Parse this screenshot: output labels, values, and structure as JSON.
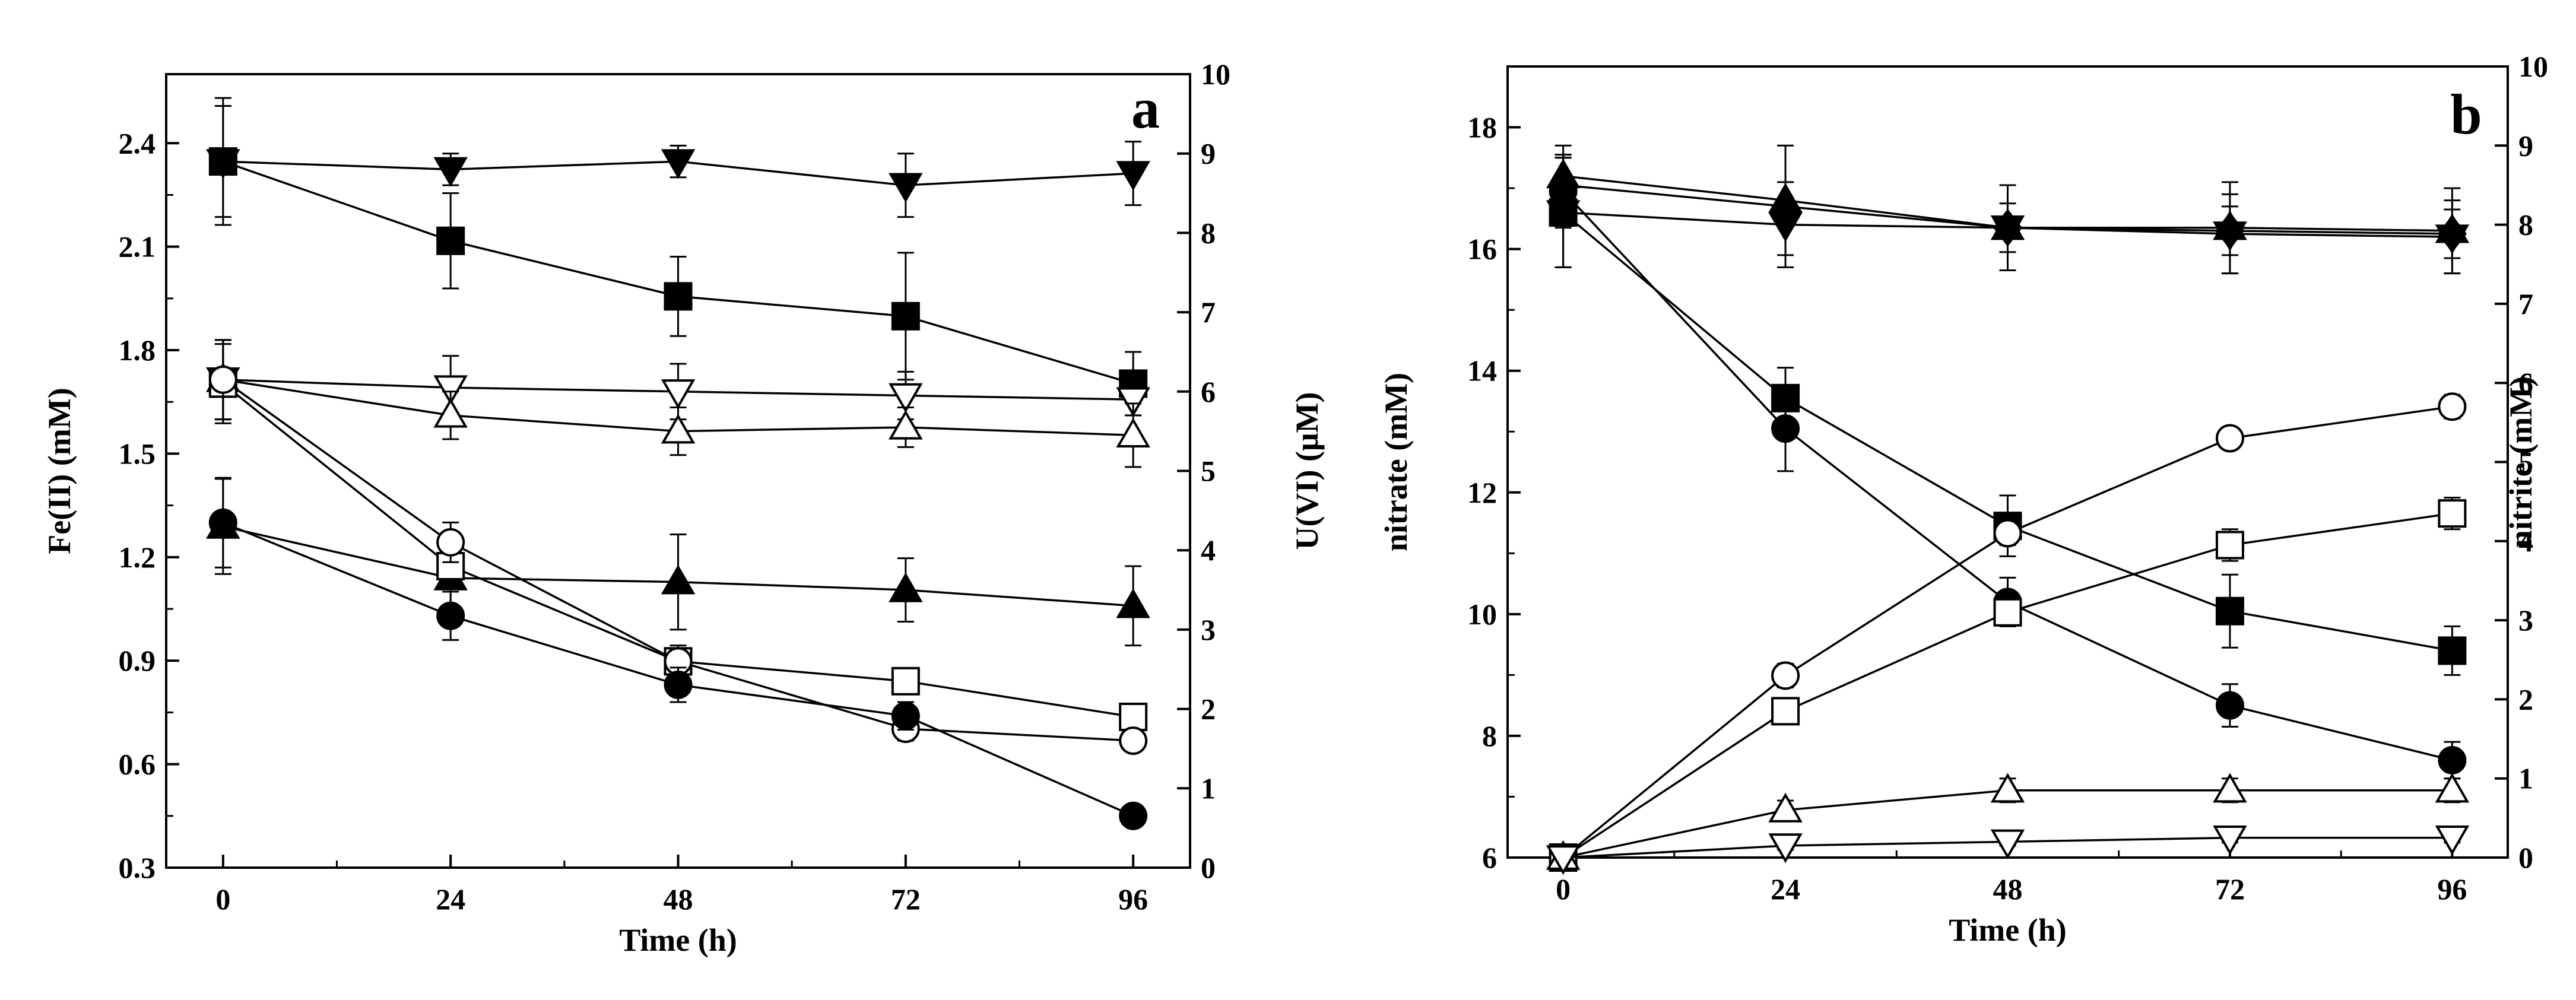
{
  "chart_data": [
    {
      "type": "line",
      "panel_label": "a",
      "xlabel": "Time (h)",
      "ylabel": "Fe(II) (mM)",
      "y2label": "U(VI) (μM)",
      "x": [
        0,
        24,
        48,
        72,
        96
      ],
      "x_ticks": [
        "0",
        "24",
        "48",
        "72",
        "96"
      ],
      "xlim": [
        -6,
        102
      ],
      "ylim": [
        0.3,
        2.6
      ],
      "y_ticks": [
        "0.3",
        "0.6",
        "0.9",
        "1.2",
        "1.5",
        "1.8",
        "2.1",
        "2.4"
      ],
      "y2lim": [
        0,
        10
      ],
      "y2_ticks": [
        "0",
        "1",
        "2",
        "3",
        "4",
        "5",
        "6",
        "7",
        "8",
        "9",
        "10"
      ],
      "series": [
        {
          "name": "filled-down-triangle",
          "marker": "tri-down",
          "filled": true,
          "axis": "right",
          "values": [
            8.9,
            8.8,
            8.9,
            8.6,
            8.75
          ],
          "errors": [
            0.7,
            0.2,
            0.2,
            0.4,
            0.4
          ]
        },
        {
          "name": "filled-square",
          "marker": "square",
          "filled": true,
          "axis": "right",
          "values": [
            8.9,
            7.9,
            7.2,
            6.95,
            6.1
          ],
          "errors": [
            0.8,
            0.6,
            0.5,
            0.8,
            0.4
          ]
        },
        {
          "name": "open-down-triangle",
          "marker": "tri-down",
          "filled": false,
          "axis": "right",
          "values": [
            6.15,
            6.05,
            6.0,
            5.95,
            5.9
          ],
          "errors": [
            0.5,
            0.4,
            0.35,
            0.3,
            0.2
          ]
        },
        {
          "name": "open-up-triangle",
          "marker": "tri-up",
          "filled": false,
          "axis": "right",
          "values": [
            6.15,
            5.7,
            5.5,
            5.55,
            5.45
          ],
          "errors": [
            0.5,
            0.3,
            0.3,
            0.25,
            0.4
          ]
        },
        {
          "name": "filled-up-triangle",
          "marker": "tri-up",
          "filled": true,
          "axis": "right",
          "values": [
            4.3,
            3.65,
            3.6,
            3.5,
            3.3
          ],
          "errors": [
            0.6,
            0.4,
            0.6,
            0.4,
            0.5
          ]
        },
        {
          "name": "open-square",
          "marker": "square",
          "filled": false,
          "axis": "right",
          "values": [
            6.1,
            3.8,
            2.6,
            2.35,
            1.9
          ],
          "errors": [
            0.5,
            0.25,
            0.2,
            0.15,
            0.15
          ]
        },
        {
          "name": "open-circle",
          "marker": "circle",
          "filled": false,
          "axis": "right",
          "values": [
            6.15,
            4.1,
            2.6,
            1.75,
            1.6
          ],
          "errors": [
            0.5,
            0.25,
            0.15,
            0.15,
            0.1
          ]
        },
        {
          "name": "filled-circle",
          "marker": "circle",
          "filled": true,
          "axis": "left",
          "values": [
            1.3,
            1.03,
            0.83,
            0.74,
            0.45
          ],
          "errors": [
            0.13,
            0.07,
            0.05,
            0.04,
            0.02
          ]
        }
      ]
    },
    {
      "type": "line",
      "panel_label": "b",
      "xlabel": "Time (h)",
      "ylabel": "nitrate (mM)",
      "y2label": "nitrite (mM)",
      "x": [
        0,
        24,
        48,
        72,
        96
      ],
      "x_ticks": [
        "0",
        "24",
        "48",
        "72",
        "96"
      ],
      "xlim": [
        -6,
        102
      ],
      "ylim": [
        6,
        19
      ],
      "y_ticks": [
        "6",
        "8",
        "10",
        "12",
        "14",
        "16",
        "18"
      ],
      "y2lim": [
        0,
        10
      ],
      "y2_ticks": [
        "0",
        "1",
        "2",
        "3",
        "4",
        "5",
        "6",
        "7",
        "8",
        "9",
        "10"
      ],
      "series": [
        {
          "name": "filled-up-triangle",
          "marker": "tri-up",
          "filled": true,
          "axis": "left",
          "values": [
            17.2,
            16.8,
            16.35,
            16.35,
            16.3
          ],
          "errors": [
            0.5,
            0.9,
            0.7,
            0.75,
            0.7
          ]
        },
        {
          "name": "filled-down-triangle",
          "marker": "tri-down",
          "filled": true,
          "axis": "left",
          "values": [
            16.6,
            16.4,
            16.35,
            16.25,
            16.2
          ],
          "errors": [
            0.9,
            0.7,
            0.7,
            0.65,
            0.6
          ]
        },
        {
          "name": "filled-diamond",
          "marker": "diamond",
          "filled": true,
          "axis": "left",
          "values": [
            17.05,
            null,
            16.35,
            16.3,
            16.25
          ],
          "errors": [
            0.5,
            null,
            0.4,
            0.4,
            0.4
          ]
        },
        {
          "name": "filled-square",
          "marker": "square",
          "filled": true,
          "axis": "left",
          "values": [
            16.6,
            13.55,
            11.45,
            10.05,
            9.4
          ],
          "errors": [
            0.9,
            0.5,
            0.5,
            0.6,
            0.4
          ]
        },
        {
          "name": "filled-circle",
          "marker": "circle",
          "filled": true,
          "axis": "left",
          "values": [
            16.95,
            13.05,
            10.2,
            8.5,
            7.6
          ],
          "errors": [
            0.6,
            0.7,
            0.4,
            0.35,
            0.3
          ]
        },
        {
          "name": "open-circle",
          "marker": "circle",
          "filled": false,
          "axis": "right",
          "values": [
            0,
            2.3,
            4.1,
            5.3,
            5.7
          ],
          "errors": [
            0.05,
            0.15,
            0.15,
            0.12,
            0.15
          ]
        },
        {
          "name": "open-square",
          "marker": "square",
          "filled": false,
          "axis": "right",
          "values": [
            0,
            1.85,
            3.1,
            3.95,
            4.35
          ],
          "errors": [
            0.05,
            0.15,
            0.15,
            0.2,
            0.2
          ]
        },
        {
          "name": "open-up-triangle",
          "marker": "tri-up",
          "filled": false,
          "axis": "right",
          "values": [
            0,
            0.6,
            0.85,
            0.85,
            0.85
          ],
          "errors": [
            0.05,
            0.12,
            0.15,
            0.15,
            0.15
          ]
        },
        {
          "name": "open-down-triangle",
          "marker": "tri-down",
          "filled": false,
          "axis": "right",
          "values": [
            0,
            0.15,
            0.2,
            0.25,
            0.25
          ],
          "errors": [
            0.03,
            0.05,
            0.05,
            0.06,
            0.06
          ]
        }
      ]
    }
  ]
}
